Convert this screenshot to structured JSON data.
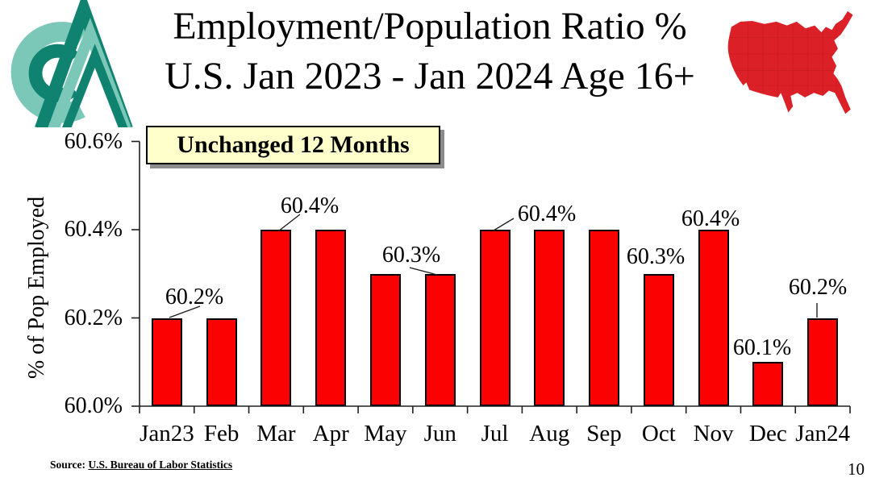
{
  "slide": {
    "title_line1": "Employment/Population Ratio %",
    "title_line2": "U.S. Jan 2023 - Jan 2024 Age 16+",
    "callout": "Unchanged 12 Months",
    "source_prefix": "Source: ",
    "source_link": "U.S. Bureau of Labor Statistics",
    "page_number": "10"
  },
  "colors": {
    "bar": "#FC0101",
    "bar_border": "#000000",
    "axis": "#1f1f1f",
    "map_red": "#DC2027",
    "map_state_line": "#b51a1a",
    "logo_light_teal": "#7BC8B8",
    "logo_dark_green": "#0F8270",
    "callout_bg": "#FFFFCC",
    "callout_shadow": "#8c8c8c"
  },
  "chart_data": {
    "type": "bar",
    "title": "Employment/Population Ratio % U.S. Jan 2023 - Jan 2024 Age 16+",
    "xlabel": "",
    "ylabel": "% of Pop Employed",
    "categories": [
      "Jan23",
      "Feb",
      "Mar",
      "Apr",
      "May",
      "Jun",
      "Jul",
      "Aug",
      "Sep",
      "Oct",
      "Nov",
      "Dec",
      "Jan24"
    ],
    "values": [
      60.2,
      60.2,
      60.4,
      60.4,
      60.3,
      60.3,
      60.4,
      60.4,
      60.4,
      60.3,
      60.4,
      60.1,
      60.2
    ],
    "ylim": [
      60.0,
      60.6
    ],
    "ytick_values": [
      60.0,
      60.2,
      60.4,
      60.6
    ],
    "ytick_labels": [
      "60.0%",
      "60.2%",
      "60.4%",
      "60.6%"
    ],
    "grid": false,
    "legend": "none",
    "annotation": "Unchanged 12 Months",
    "data_labels": [
      {
        "text": "60.2%",
        "for": "Jan23"
      },
      {
        "text": "60.4%",
        "for": "Mar"
      },
      {
        "text": "60.3%",
        "for": "Jun"
      },
      {
        "text": "60.4%",
        "for": "Jul"
      },
      {
        "text": "60.3%",
        "for": "Oct"
      },
      {
        "text": "60.4%",
        "for": "Nov"
      },
      {
        "text": "60.1%",
        "for": "Dec"
      },
      {
        "text": "60.2%",
        "for": "Jan24"
      }
    ]
  }
}
